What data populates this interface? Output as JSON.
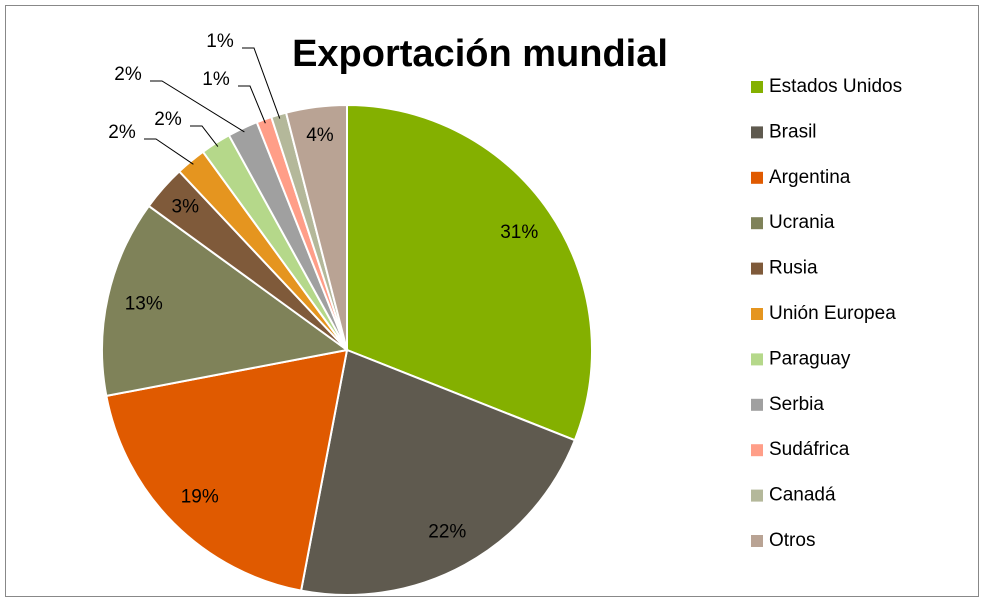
{
  "chart_data": {
    "type": "pie",
    "title": "Exportación mundial",
    "categories": [
      "Estados Unidos",
      "Brasil",
      "Argentina",
      "Ucrania",
      "Rusia",
      "Unión Europea",
      "Paraguay",
      "Serbia",
      "Sudáfrica",
      "Canadá",
      "Otros"
    ],
    "values": [
      31,
      22,
      19,
      13,
      3,
      2,
      2,
      2,
      1,
      1,
      4
    ],
    "value_labels": [
      "31%",
      "22%",
      "19%",
      "13%",
      "3%",
      "2%",
      "2%",
      "2%",
      "1%",
      "1%",
      "4%"
    ],
    "colors": [
      "#84b000",
      "#5f5a4f",
      "#e05a00",
      "#7f8259",
      "#7f5a3a",
      "#e5951f",
      "#b5d88a",
      "#a0a0a0",
      "#ff9e88",
      "#b4b89a",
      "#b9a394"
    ],
    "legend": "right"
  }
}
